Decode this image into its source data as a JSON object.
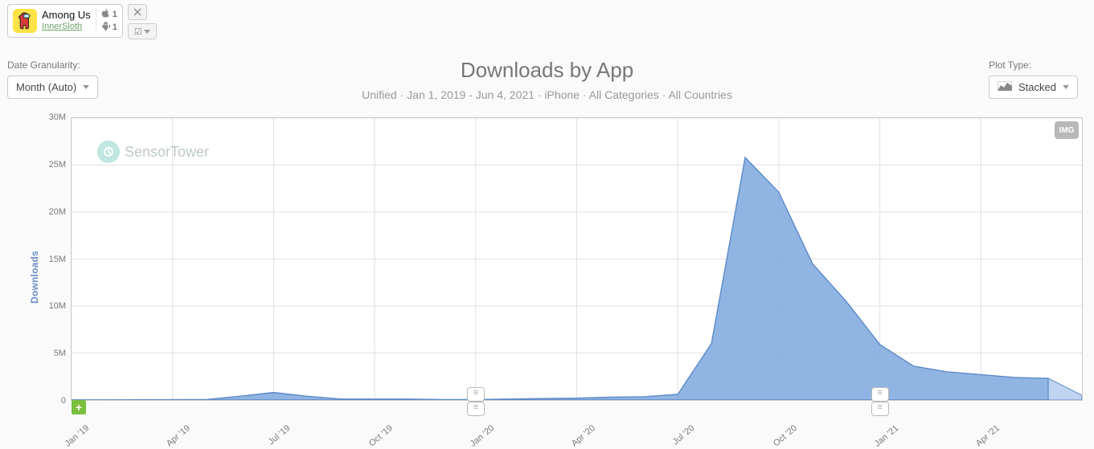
{
  "app": {
    "title": "Among Us",
    "publisher": "InnerSloth",
    "apple_rank": "1",
    "android_rank": "1",
    "icon_bg": "#ffe346",
    "icon_body": "#d83a3a",
    "icon_visor": "#a9ecff"
  },
  "granularity": {
    "label": "Date Granularity:",
    "value": "Month (Auto)"
  },
  "plotType": {
    "label": "Plot Type:",
    "value": "Stacked"
  },
  "title": "Downloads by App",
  "subtitle": "Unified · Jan 1, 2019 - Jun 4, 2021 · iPhone · All Categories · All Countries",
  "yAxisTitle": "Downloads",
  "imgBtn": "IMG",
  "watermark": "SensorTower",
  "chart": {
    "type": "area",
    "background_color": "#ffffff",
    "grid_color": "#e0e0e0",
    "fill_color": "#7da8dd",
    "fill_opacity": 0.85,
    "line_color": "#5d89c8",
    "line_width": 1.4,
    "ylim": [
      0,
      30
    ],
    "ytick_step": 5,
    "ytick_format_suffix": "M",
    "y_labels": [
      "0",
      "5M",
      "10M",
      "15M",
      "20M",
      "25M",
      "30M"
    ],
    "x_major_labels": [
      "Jan '19",
      "Apr '19",
      "Jul '19",
      "Oct '19",
      "Jan '20",
      "Apr '20",
      "Jul '20",
      "Oct '20",
      "Jan '21",
      "Apr '21"
    ],
    "x_major_indices": [
      0,
      3,
      6,
      9,
      12,
      15,
      18,
      21,
      24,
      27
    ],
    "n_points": 30,
    "values_M": [
      0.01,
      0.02,
      0.03,
      0.04,
      0.05,
      0.4,
      0.8,
      0.4,
      0.1,
      0.1,
      0.1,
      0.05,
      0.05,
      0.1,
      0.15,
      0.2,
      0.3,
      0.35,
      0.6,
      6.0,
      25.8,
      22.1,
      14.5,
      10.5,
      5.9,
      3.6,
      3.0,
      2.7,
      2.4,
      2.3
    ],
    "projection_indices": [
      29,
      30
    ],
    "projection_values_M": [
      2.3,
      0.5
    ],
    "projection_fill_color": "#b7cff0",
    "note_markers_at": [
      12,
      24
    ]
  }
}
